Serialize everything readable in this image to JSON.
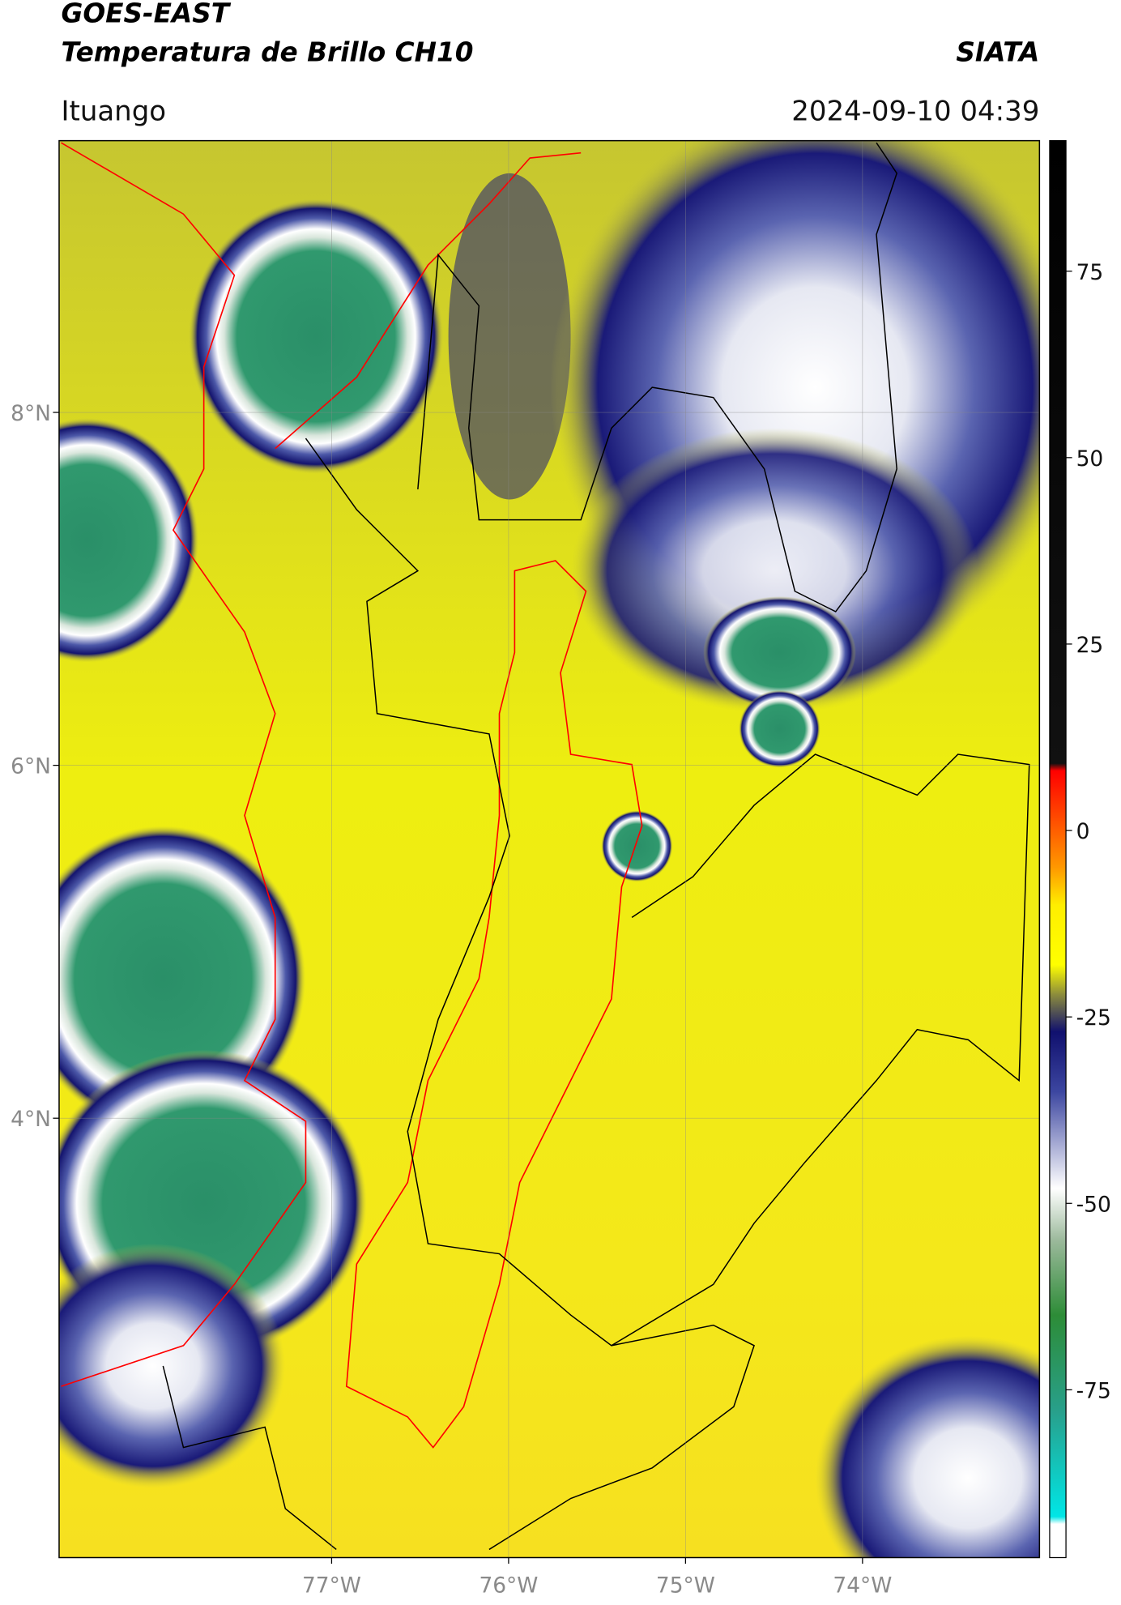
{
  "chart_data": {
    "type": "map",
    "title": "GOES-EAST",
    "subtitle": "Temperatura de Brillo CH10",
    "source": "SIATA",
    "location": "Ituango",
    "datetime": "2024-09-10 04:39",
    "xlim": [
      -78.54,
      -73.0
    ],
    "ylim": [
      1.51,
      9.54
    ],
    "xticks": [
      {
        "value": -77,
        "label": "77°W"
      },
      {
        "value": -76,
        "label": "76°W"
      },
      {
        "value": -75,
        "label": "75°W"
      },
      {
        "value": -74,
        "label": "74°W"
      }
    ],
    "yticks": [
      {
        "value": 8,
        "label": "8°N"
      },
      {
        "value": 6,
        "label": "6°N"
      },
      {
        "value": 4,
        "label": "4°N"
      }
    ],
    "grid": true,
    "colorbar": {
      "clim": [
        -97.5,
        92.5
      ],
      "ticks": [
        75,
        50,
        25,
        0,
        -25,
        -50,
        -75
      ],
      "colormap": [
        {
          "value": 92.5,
          "color": "#000000"
        },
        {
          "value": 9,
          "color": "#111111"
        },
        {
          "value": 8,
          "color": "#ff0000"
        },
        {
          "value": -5,
          "color": "#ff9900"
        },
        {
          "value": -10,
          "color": "#ffee00"
        },
        {
          "value": -18,
          "color": "#ffff00"
        },
        {
          "value": -22,
          "color": "#8c8c3c"
        },
        {
          "value": -27,
          "color": "#10106e"
        },
        {
          "value": -35,
          "color": "#3c46a0"
        },
        {
          "value": -48,
          "color": "#ffffff"
        },
        {
          "value": -55,
          "color": "#9bb99b"
        },
        {
          "value": -65,
          "color": "#2d8c37"
        },
        {
          "value": -78,
          "color": "#28a08c"
        },
        {
          "value": -92,
          "color": "#00e6e6"
        },
        {
          "value": -93,
          "color": "#ffffff"
        }
      ]
    }
  }
}
